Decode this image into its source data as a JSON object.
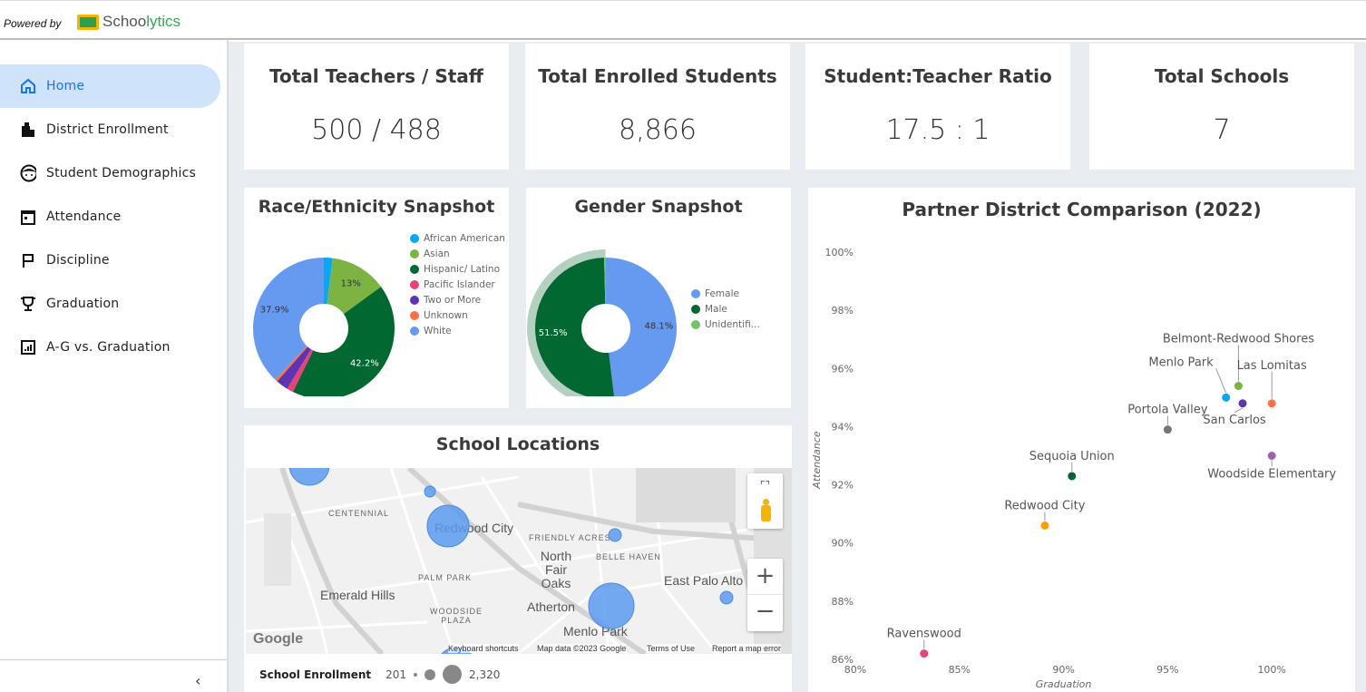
{
  "header": {
    "powered_by": "Powered by",
    "brand_a": "Schoo",
    "brand_b": "lytics"
  },
  "sidebar": {
    "items": [
      {
        "label": "Home",
        "icon": "home-icon",
        "active": true
      },
      {
        "label": "District Enrollment",
        "icon": "building-icon"
      },
      {
        "label": "Student Demographics",
        "icon": "face-icon"
      },
      {
        "label": "Attendance",
        "icon": "calendar-icon"
      },
      {
        "label": "Discipline",
        "icon": "flag-icon"
      },
      {
        "label": "Graduation",
        "icon": "trophy-icon"
      },
      {
        "label": "A-G vs. Graduation",
        "icon": "bar-chart-icon"
      }
    ],
    "collapse": "‹"
  },
  "kpis": [
    {
      "title": "Total Teachers / Staff",
      "value": "500 / 488"
    },
    {
      "title": "Total Enrolled Students",
      "value": "8,866"
    },
    {
      "title": "Student:Teacher Ratio",
      "value": "17.5 : 1"
    },
    {
      "title": "Total Schools",
      "value": "7"
    }
  ],
  "map": {
    "title": "School Locations",
    "labels": {
      "centennial": "CENTENNIAL",
      "redwood_city": "Redwood City",
      "friendly_acres": "FRIENDLY ACRES",
      "belle_haven": "BELLE HAVEN",
      "north_fair_oaks": "North Fair Oaks",
      "palm_park": "PALM PARK",
      "east_palo_alto": "East Palo Alto",
      "emerald_hills": "Emerald Hills",
      "woodside_plaza": "WOODSIDE PLAZA",
      "atherton": "Atherton",
      "menlo_park": "Menlo Park"
    },
    "attribution": {
      "google": "Google",
      "shortcuts": "Keyboard shortcuts",
      "data": "Map data ©2023 Google",
      "terms": "Terms of Use",
      "report": "Report a map error"
    },
    "legend": {
      "title": "School Enrollment",
      "min": "201",
      "max": "2,320"
    },
    "marker_color": "#5b9bf0"
  },
  "chart_data": [
    {
      "type": "pie",
      "title": "Race/Ethnicity Snapshot",
      "donut": true,
      "categories": [
        "African American",
        "Asian",
        "Hispanic/ Latino",
        "Pacific Islander",
        "Two or More",
        "Unknown",
        "White"
      ],
      "values": [
        2.0,
        13.0,
        42.2,
        1.5,
        2.8,
        0.6,
        37.9
      ],
      "data_labels": [
        "",
        "13%",
        "42.2%",
        "",
        "",
        "",
        "37.9%"
      ],
      "colors": [
        "#03a9f4",
        "#7cb342",
        "#006830",
        "#ec407a",
        "#5e35b1",
        "#ff7043",
        "#6699f0"
      ],
      "legend": "right"
    },
    {
      "type": "pie",
      "title": "Gender Snapshot",
      "donut": true,
      "categories": [
        "Female",
        "Male",
        "Unidentifi..."
      ],
      "values": [
        48.1,
        51.5,
        0.4
      ],
      "data_labels": [
        "48.1%",
        "51.5%",
        ""
      ],
      "colors": [
        "#6699f0",
        "#006830",
        "#76c267"
      ],
      "highlighted": "Male",
      "legend": "right"
    },
    {
      "type": "scatter",
      "title": "Partner District Comparison (2022)",
      "xlabel": "Graduation",
      "ylabel": "Attendance",
      "xlim": [
        80,
        104
      ],
      "ylim": [
        86,
        100
      ],
      "grid": false,
      "xticks": [
        "80%",
        "85%",
        "90%",
        "95%",
        "100%"
      ],
      "yticks": [
        "86%",
        "88%",
        "90%",
        "92%",
        "94%",
        "96%",
        "98%",
        "100%"
      ],
      "points": [
        {
          "name": "Ravenswood",
          "x": 83.3,
          "y": 86.2,
          "color": "#ec407a"
        },
        {
          "name": "Redwood City",
          "x": 89.1,
          "y": 90.6,
          "color": "#ffa000"
        },
        {
          "name": "Sequoia Union",
          "x": 90.4,
          "y": 92.3,
          "color": "#006830"
        },
        {
          "name": "Portola Valley",
          "x": 95.0,
          "y": 93.9,
          "color": "#757575"
        },
        {
          "name": "Woodside Elementary",
          "x": 100.0,
          "y": 93.0,
          "color": "#9c64b0"
        },
        {
          "name": "Menlo Park",
          "x": 97.8,
          "y": 95.0,
          "color": "#03a9f4"
        },
        {
          "name": "Belmont-Redwood Shores",
          "x": 98.4,
          "y": 95.4,
          "color": "#7cb342"
        },
        {
          "name": "San Carlos",
          "x": 98.6,
          "y": 94.8,
          "color": "#5e35b1"
        },
        {
          "name": "Las Lomitas",
          "x": 100.0,
          "y": 94.8,
          "color": "#ff7043"
        }
      ]
    }
  ]
}
